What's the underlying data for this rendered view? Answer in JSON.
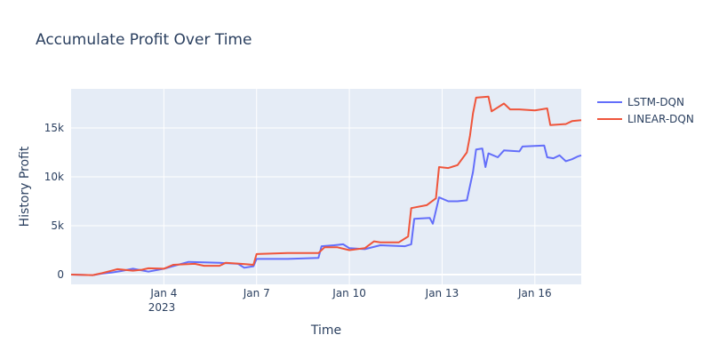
{
  "chart_data": {
    "type": "line",
    "title": "Accumulate Profit Over Time",
    "xlabel": "Time",
    "ylabel": "History Profit",
    "x_axis": {
      "kind": "date",
      "range": [
        "2023-01-01",
        "2023-01-17.5"
      ],
      "tick_dates": [
        "2023-01-04",
        "2023-01-07",
        "2023-01-10",
        "2023-01-13",
        "2023-01-16"
      ],
      "tick_labels": [
        "Jan 4",
        "Jan 7",
        "Jan 10",
        "Jan 13",
        "Jan 16"
      ],
      "year_label": "2023"
    },
    "y_axis": {
      "range": [
        -1000,
        19000
      ],
      "tick_values": [
        0,
        5000,
        10000,
        15000
      ],
      "tick_labels": [
        "0",
        "5k",
        "10k",
        "15k"
      ]
    },
    "grid": true,
    "legend": "top-right",
    "series": [
      {
        "name": "LSTM-DQN",
        "color": "#636efa",
        "points": [
          [
            "2023-01-01",
            0
          ],
          [
            "2023-01-01.7",
            -50
          ],
          [
            "2023-01-02",
            100
          ],
          [
            "2023-01-02.3",
            200
          ],
          [
            "2023-01-02.6",
            350
          ],
          [
            "2023-01-03",
            600
          ],
          [
            "2023-01-03.5",
            300
          ],
          [
            "2023-01-04",
            600
          ],
          [
            "2023-01-04.8",
            1300
          ],
          [
            "2023-01-05.8",
            1200
          ],
          [
            "2023-01-06.4",
            1100
          ],
          [
            "2023-01-06.6",
            700
          ],
          [
            "2023-01-06.9",
            850
          ],
          [
            "2023-01-07",
            1600
          ],
          [
            "2023-01-08",
            1600
          ],
          [
            "2023-01-09",
            1700
          ],
          [
            "2023-01-09.1",
            2900
          ],
          [
            "2023-01-09.5",
            3000
          ],
          [
            "2023-01-09.8",
            3100
          ],
          [
            "2023-01-10",
            2700
          ],
          [
            "2023-01-10.5",
            2600
          ],
          [
            "2023-01-11",
            3000
          ],
          [
            "2023-01-11.8",
            2900
          ],
          [
            "2023-01-12",
            3100
          ],
          [
            "2023-01-12.1",
            5700
          ],
          [
            "2023-01-12.6",
            5800
          ],
          [
            "2023-01-12.7",
            5200
          ],
          [
            "2023-01-12.9",
            7900
          ],
          [
            "2023-01-13.2",
            7500
          ],
          [
            "2023-01-13.5",
            7500
          ],
          [
            "2023-01-13.8",
            7600
          ],
          [
            "2023-01-14",
            10500
          ],
          [
            "2023-01-14.1",
            12800
          ],
          [
            "2023-01-14.3",
            12900
          ],
          [
            "2023-01-14.4",
            11000
          ],
          [
            "2023-01-14.5",
            12400
          ],
          [
            "2023-01-14.8",
            12000
          ],
          [
            "2023-01-15",
            12700
          ],
          [
            "2023-01-15.5",
            12600
          ],
          [
            "2023-01-15.6",
            13100
          ],
          [
            "2023-01-16.3",
            13200
          ],
          [
            "2023-01-16.4",
            12000
          ],
          [
            "2023-01-16.6",
            11900
          ],
          [
            "2023-01-16.8",
            12200
          ],
          [
            "2023-01-17",
            11600
          ],
          [
            "2023-01-17.2",
            11800
          ],
          [
            "2023-01-17.4",
            12100
          ],
          [
            "2023-01-17.5",
            12200
          ]
        ]
      },
      {
        "name": "LINEAR-DQN",
        "color": "#ef553b",
        "points": [
          [
            "2023-01-01",
            0
          ],
          [
            "2023-01-01.7",
            -50
          ],
          [
            "2023-01-02",
            150
          ],
          [
            "2023-01-02.5",
            550
          ],
          [
            "2023-01-03",
            400
          ],
          [
            "2023-01-03.3",
            500
          ],
          [
            "2023-01-03.5",
            650
          ],
          [
            "2023-01-04",
            600
          ],
          [
            "2023-01-04.3",
            1000
          ],
          [
            "2023-01-05",
            1100
          ],
          [
            "2023-01-05.3",
            900
          ],
          [
            "2023-01-05.8",
            900
          ],
          [
            "2023-01-06",
            1200
          ],
          [
            "2023-01-06.5",
            1100
          ],
          [
            "2023-01-06.9",
            1000
          ],
          [
            "2023-01-07",
            2100
          ],
          [
            "2023-01-08",
            2200
          ],
          [
            "2023-01-09",
            2200
          ],
          [
            "2023-01-09.2",
            2800
          ],
          [
            "2023-01-09.6",
            2800
          ],
          [
            "2023-01-10",
            2500
          ],
          [
            "2023-01-10.5",
            2700
          ],
          [
            "2023-01-10.8",
            3400
          ],
          [
            "2023-01-11",
            3300
          ],
          [
            "2023-01-11.6",
            3300
          ],
          [
            "2023-01-11.9",
            3900
          ],
          [
            "2023-01-12",
            6800
          ],
          [
            "2023-01-12.5",
            7100
          ],
          [
            "2023-01-12.8",
            7800
          ],
          [
            "2023-01-12.9",
            11000
          ],
          [
            "2023-01-13.2",
            10900
          ],
          [
            "2023-01-13.5",
            11200
          ],
          [
            "2023-01-13.8",
            12500
          ],
          [
            "2023-01-13.9",
            14200
          ],
          [
            "2023-01-14",
            16500
          ],
          [
            "2023-01-14.1",
            18100
          ],
          [
            "2023-01-14.5",
            18200
          ],
          [
            "2023-01-14.6",
            16700
          ],
          [
            "2023-01-15",
            17500
          ],
          [
            "2023-01-15.2",
            16900
          ],
          [
            "2023-01-15.5",
            16900
          ],
          [
            "2023-01-16",
            16800
          ],
          [
            "2023-01-16.4",
            17000
          ],
          [
            "2023-01-16.5",
            15300
          ],
          [
            "2023-01-17",
            15400
          ],
          [
            "2023-01-17.2",
            15700
          ],
          [
            "2023-01-17.5",
            15800
          ]
        ]
      }
    ]
  }
}
